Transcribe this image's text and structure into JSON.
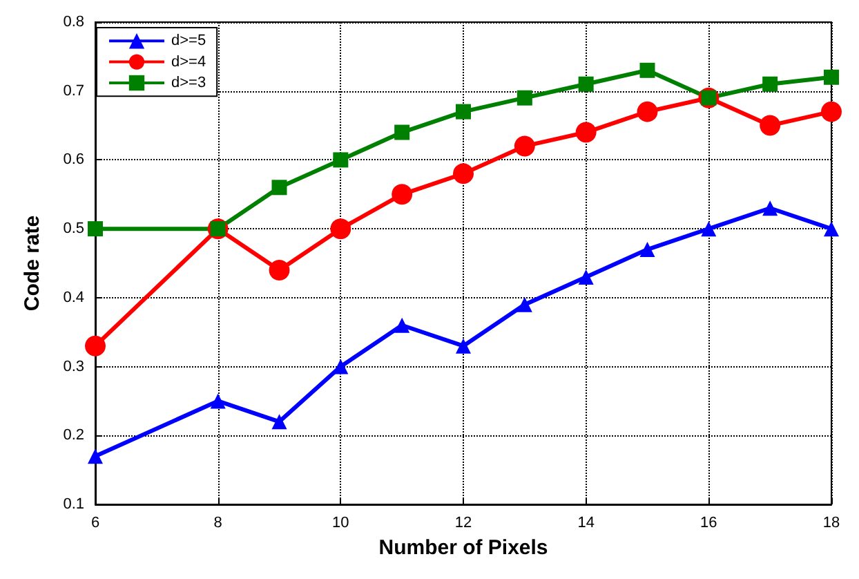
{
  "chart_data": {
    "type": "line",
    "xlabel": "Number of Pixels",
    "ylabel": "Code rate",
    "x": [
      6,
      8,
      9,
      10,
      11,
      12,
      13,
      14,
      15,
      16,
      17,
      18
    ],
    "series": [
      {
        "name": "d>=5",
        "color": "#0000ff",
        "marker": "triangle",
        "values": [
          0.17,
          0.25,
          0.22,
          0.3,
          0.36,
          0.33,
          0.39,
          0.43,
          0.47,
          0.5,
          0.53,
          0.5
        ]
      },
      {
        "name": "d>=4",
        "color": "#ff0000",
        "marker": "circle",
        "values": [
          0.33,
          0.5,
          0.44,
          0.5,
          0.55,
          0.58,
          0.62,
          0.64,
          0.67,
          0.69,
          0.65,
          0.67
        ]
      },
      {
        "name": "d>=3",
        "color": "#008000",
        "marker": "square",
        "values": [
          0.5,
          0.5,
          0.56,
          0.6,
          0.64,
          0.67,
          0.69,
          0.71,
          0.73,
          0.69,
          0.71,
          0.72
        ]
      }
    ],
    "xlim": [
      6,
      18
    ],
    "xticks": [
      6,
      8,
      10,
      12,
      14,
      16,
      18
    ],
    "ylim": [
      0.1,
      0.8
    ],
    "yticks": [
      0.1,
      0.2,
      0.3,
      0.4,
      0.5,
      0.6,
      0.7,
      0.8
    ],
    "grid": true,
    "legend": "top left",
    "line_style": "solid"
  }
}
